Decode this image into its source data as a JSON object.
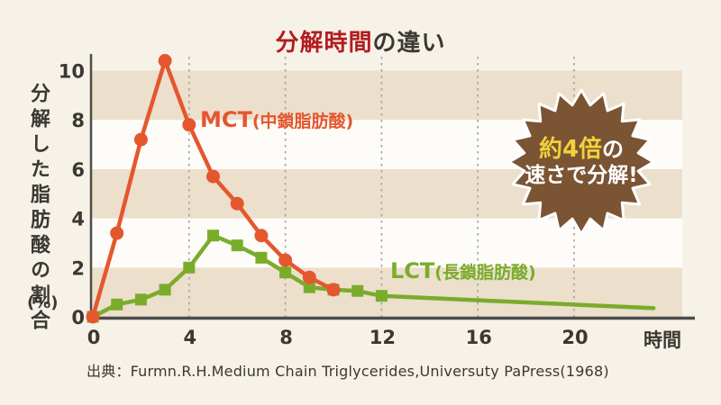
{
  "title": {
    "part1": "分解時間",
    "part2": "の違い",
    "part1_color": "#b11d22",
    "part2_color": "#3b3733"
  },
  "y_axis": {
    "label": "分解した脂肪酸の割合",
    "unit": "(%)",
    "ticks": [
      0,
      2,
      4,
      6,
      8,
      10
    ]
  },
  "x_axis": {
    "ticks": [
      0,
      4,
      8,
      12,
      16,
      20
    ],
    "gridlines": [
      4,
      8,
      12,
      16,
      20
    ],
    "unit": "時間"
  },
  "badge": {
    "line1_highlight": "約4倍",
    "line1_rest": "の",
    "line2": "速さで分解!",
    "bg_color": "#7b5433",
    "border_color": "#ffffff",
    "highlight_color": "#f2d13e",
    "text_color": "#ffffff"
  },
  "source": "出典：Furmn.R.H.Medium Chain Triglycerides,Universuty PaPress(1968)",
  "colors": {
    "page_background": "#f7f2e8",
    "axis": "#4c4c4c",
    "gridline": "#a3a3a3",
    "text_dark": "#3b3733"
  },
  "chart_data": {
    "type": "line",
    "title": "分解時間の違い",
    "xlabel": "時間",
    "ylabel": "分解した脂肪酸の割合(%)",
    "xlim": [
      0,
      24.5
    ],
    "ylim": [
      0,
      10.6
    ],
    "grid": "vertical-dashed",
    "legend_position": "inline-labels",
    "stripe_colors": [
      "#ecdfcc",
      "#fdfcf8"
    ],
    "stripe_band_height": 2,
    "series": [
      {
        "name": "LCT",
        "label_main": "LCT",
        "label_paren": "(長鎖脂肪酸)",
        "color": "#7aac2b",
        "marker": "square",
        "x": [
          0,
          1,
          2,
          3,
          4,
          5,
          6,
          7,
          8,
          9,
          10,
          11,
          12,
          23.3
        ],
        "y": [
          0,
          0.5,
          0.7,
          1.1,
          2.0,
          3.3,
          2.9,
          2.4,
          1.8,
          1.2,
          1.1,
          1.05,
          0.85,
          0.35
        ],
        "markers_through": 12
      },
      {
        "name": "MCT",
        "label_main": "MCT",
        "label_paren": "(中鎖脂肪酸)",
        "color": "#e4572e",
        "marker": "circle",
        "x": [
          0,
          1,
          2,
          3,
          4,
          5,
          6,
          7,
          8,
          9,
          10
        ],
        "y": [
          0,
          3.4,
          7.2,
          10.4,
          7.8,
          5.7,
          4.6,
          3.3,
          2.3,
          1.6,
          1.1
        ],
        "markers_through": 10
      }
    ],
    "annotation": "約4倍の速さで分解!"
  }
}
